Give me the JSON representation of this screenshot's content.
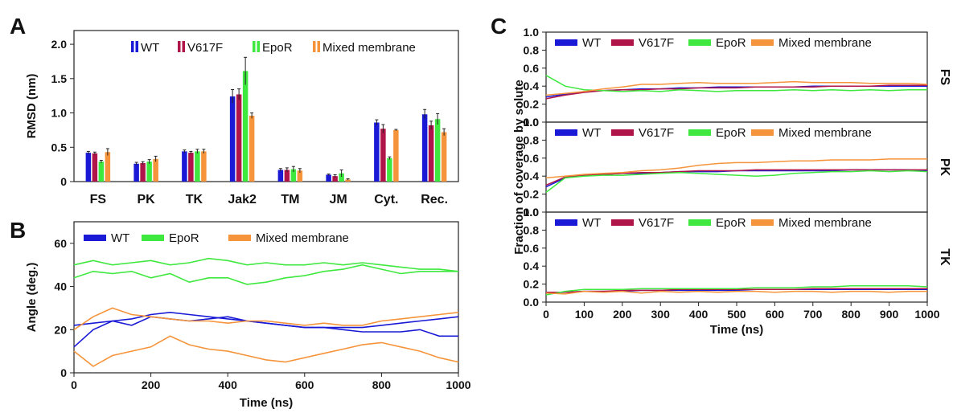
{
  "colors": {
    "WT": "#1a1ad6",
    "V617F": "#b0154a",
    "EpoR": "#3ee83e",
    "Mixed membrane": "#f5943a"
  },
  "chart_data": [
    {
      "panel": "A",
      "type": "bar",
      "ylabel": "RMSD (nm)",
      "xlabel": "",
      "ylim": [
        0,
        2.2
      ],
      "yticks": [
        "0",
        "0.5",
        "1.0",
        "1.5",
        "2.0"
      ],
      "ytick_values": [
        0,
        0.5,
        1.0,
        1.5,
        2.0
      ],
      "legend": "top",
      "categories": [
        "FS",
        "PK",
        "TK",
        "Jak2",
        "TM",
        "JM",
        "Cyt.",
        "Rec."
      ],
      "series": [
        {
          "name": "WT",
          "values": [
            0.42,
            0.26,
            0.44,
            1.24,
            0.17,
            0.1,
            0.86,
            0.98
          ],
          "errors": [
            0.02,
            0.02,
            0.02,
            0.1,
            0.02,
            0.01,
            0.04,
            0.07
          ]
        },
        {
          "name": "V617F",
          "values": [
            0.41,
            0.27,
            0.42,
            1.27,
            0.17,
            0.08,
            0.77,
            0.82
          ],
          "errors": [
            0.02,
            0.02,
            0.02,
            0.08,
            0.03,
            0.02,
            0.06,
            0.06
          ]
        },
        {
          "name": "EpoR",
          "values": [
            0.29,
            0.29,
            0.44,
            1.61,
            0.18,
            0.12,
            0.34,
            0.91
          ],
          "errors": [
            0.02,
            0.03,
            0.03,
            0.2,
            0.04,
            0.05,
            0.02,
            0.08
          ]
        },
        {
          "name": "Mixed membrane",
          "values": [
            0.43,
            0.33,
            0.44,
            0.96,
            0.16,
            0.03,
            0.75,
            0.72
          ],
          "errors": [
            0.05,
            0.04,
            0.03,
            0.04,
            0.03,
            0.01,
            0.01,
            0.05
          ]
        }
      ]
    },
    {
      "panel": "B",
      "type": "line",
      "xlabel": "Time (ns)",
      "ylabel": "Angle (deg.)",
      "xlim": [
        0,
        1000
      ],
      "ylim": [
        0,
        70
      ],
      "xticks": [
        "0",
        "200",
        "400",
        "600",
        "800",
        "1000"
      ],
      "xtick_values": [
        0,
        200,
        400,
        600,
        800,
        1000
      ],
      "yticks": [
        "0",
        "20",
        "40",
        "60"
      ],
      "ytick_values": [
        0,
        20,
        40,
        60
      ],
      "legend": "top",
      "legend_entries": [
        "WT",
        "EpoR",
        "Mixed membrane"
      ],
      "x": [
        0,
        50,
        100,
        150,
        200,
        250,
        300,
        350,
        400,
        450,
        500,
        550,
        600,
        650,
        700,
        750,
        800,
        850,
        900,
        950,
        1000
      ],
      "series": [
        {
          "name": "WT",
          "values": [
            22,
            23,
            24,
            25,
            27,
            28,
            27,
            26,
            25,
            24,
            23,
            22,
            21,
            21,
            21,
            21,
            22,
            23,
            24,
            25,
            26
          ]
        },
        {
          "name": "WT",
          "values": [
            12,
            20,
            24,
            22,
            26,
            25,
            24,
            25,
            26,
            24,
            23,
            22,
            21,
            21,
            20,
            19,
            19,
            19,
            20,
            17,
            17
          ]
        },
        {
          "name": "EpoR",
          "values": [
            50,
            52,
            50,
            51,
            52,
            50,
            51,
            53,
            52,
            50,
            51,
            50,
            50,
            51,
            50,
            51,
            50,
            49,
            48,
            48,
            47
          ]
        },
        {
          "name": "EpoR",
          "values": [
            44,
            47,
            46,
            47,
            44,
            46,
            42,
            44,
            44,
            41,
            42,
            44,
            45,
            47,
            48,
            50,
            48,
            46,
            47,
            47,
            47
          ]
        },
        {
          "name": "Mixed membrane",
          "values": [
            20,
            26,
            30,
            27,
            26,
            25,
            24,
            24,
            23,
            24,
            24,
            23,
            22,
            23,
            22,
            22,
            24,
            25,
            26,
            27,
            28
          ]
        },
        {
          "name": "Mixed membrane",
          "values": [
            10,
            3,
            8,
            10,
            12,
            17,
            13,
            11,
            10,
            8,
            6,
            5,
            7,
            9,
            11,
            13,
            14,
            12,
            10,
            7,
            5
          ]
        }
      ]
    },
    {
      "panel": "C",
      "type": "line",
      "xlabel": "Time (ns)",
      "ylabel": "Fraction of coverage by solute",
      "xlim": [
        0,
        1000
      ],
      "ylim": [
        0,
        1.0
      ],
      "xticks": [
        "0",
        "100",
        "200",
        "300",
        "400",
        "500",
        "600",
        "700",
        "800",
        "900",
        "1000"
      ],
      "xtick_values": [
        0,
        100,
        200,
        300,
        400,
        500,
        600,
        700,
        800,
        900,
        1000
      ],
      "yticks": [
        "0.0",
        "0.2",
        "0.4",
        "0.6",
        "0.8",
        "1.0"
      ],
      "ytick_values": [
        0,
        0.2,
        0.4,
        0.6,
        0.8,
        1.0
      ],
      "legend": "top",
      "legend_entries": [
        "WT",
        "V617F",
        "EpoR",
        "Mixed membrane"
      ],
      "x": [
        0,
        50,
        100,
        150,
        200,
        250,
        300,
        350,
        400,
        450,
        500,
        550,
        600,
        650,
        700,
        750,
        800,
        850,
        900,
        950,
        1000
      ],
      "subplots": [
        {
          "label": "FS",
          "series": [
            {
              "name": "WT",
              "values": [
                0.28,
                0.31,
                0.34,
                0.35,
                0.36,
                0.37,
                0.37,
                0.38,
                0.38,
                0.39,
                0.39,
                0.39,
                0.39,
                0.39,
                0.4,
                0.4,
                0.4,
                0.4,
                0.4,
                0.4,
                0.4
              ]
            },
            {
              "name": "V617F",
              "values": [
                0.26,
                0.3,
                0.33,
                0.35,
                0.36,
                0.36,
                0.37,
                0.37,
                0.38,
                0.38,
                0.38,
                0.39,
                0.39,
                0.39,
                0.39,
                0.4,
                0.4,
                0.4,
                0.41,
                0.41,
                0.41
              ]
            },
            {
              "name": "EpoR",
              "values": [
                0.52,
                0.4,
                0.36,
                0.35,
                0.34,
                0.35,
                0.34,
                0.36,
                0.35,
                0.34,
                0.35,
                0.35,
                0.35,
                0.36,
                0.35,
                0.36,
                0.35,
                0.36,
                0.35,
                0.36,
                0.36
              ]
            },
            {
              "name": "Mixed membrane",
              "values": [
                0.3,
                0.32,
                0.34,
                0.37,
                0.39,
                0.42,
                0.42,
                0.43,
                0.44,
                0.43,
                0.43,
                0.43,
                0.44,
                0.45,
                0.44,
                0.44,
                0.44,
                0.43,
                0.43,
                0.43,
                0.42
              ]
            }
          ]
        },
        {
          "label": "PK",
          "series": [
            {
              "name": "WT",
              "values": [
                0.28,
                0.38,
                0.41,
                0.42,
                0.43,
                0.43,
                0.44,
                0.45,
                0.45,
                0.45,
                0.46,
                0.46,
                0.46,
                0.46,
                0.46,
                0.46,
                0.47,
                0.47,
                0.47,
                0.47,
                0.46
              ]
            },
            {
              "name": "V617F",
              "values": [
                0.3,
                0.39,
                0.41,
                0.42,
                0.43,
                0.44,
                0.44,
                0.45,
                0.46,
                0.46,
                0.46,
                0.47,
                0.47,
                0.47,
                0.47,
                0.47,
                0.47,
                0.47,
                0.47,
                0.47,
                0.47
              ]
            },
            {
              "name": "EpoR",
              "values": [
                0.22,
                0.38,
                0.4,
                0.41,
                0.41,
                0.42,
                0.43,
                0.44,
                0.43,
                0.42,
                0.41,
                0.4,
                0.41,
                0.43,
                0.44,
                0.45,
                0.45,
                0.46,
                0.45,
                0.46,
                0.45
              ]
            },
            {
              "name": "Mixed membrane",
              "values": [
                0.38,
                0.4,
                0.42,
                0.43,
                0.44,
                0.46,
                0.47,
                0.49,
                0.52,
                0.54,
                0.55,
                0.55,
                0.56,
                0.57,
                0.57,
                0.58,
                0.58,
                0.58,
                0.59,
                0.59,
                0.59
              ]
            }
          ]
        },
        {
          "label": "TK",
          "series": [
            {
              "name": "WT",
              "values": [
                0.1,
                0.11,
                0.12,
                0.12,
                0.12,
                0.13,
                0.13,
                0.13,
                0.13,
                0.13,
                0.13,
                0.14,
                0.14,
                0.14,
                0.14,
                0.14,
                0.14,
                0.14,
                0.14,
                0.14,
                0.14
              ]
            },
            {
              "name": "V617F",
              "values": [
                0.11,
                0.11,
                0.12,
                0.12,
                0.13,
                0.13,
                0.13,
                0.14,
                0.14,
                0.14,
                0.14,
                0.14,
                0.14,
                0.14,
                0.15,
                0.15,
                0.15,
                0.15,
                0.15,
                0.15,
                0.15
              ]
            },
            {
              "name": "EpoR",
              "values": [
                0.08,
                0.12,
                0.14,
                0.14,
                0.14,
                0.15,
                0.15,
                0.15,
                0.15,
                0.15,
                0.15,
                0.16,
                0.16,
                0.16,
                0.17,
                0.17,
                0.18,
                0.18,
                0.18,
                0.18,
                0.17
              ]
            },
            {
              "name": "Mixed membrane",
              "values": [
                0.1,
                0.09,
                0.12,
                0.11,
                0.12,
                0.1,
                0.12,
                0.11,
                0.12,
                0.11,
                0.12,
                0.12,
                0.11,
                0.12,
                0.12,
                0.11,
                0.12,
                0.12,
                0.11,
                0.12,
                0.12
              ]
            }
          ]
        }
      ]
    }
  ]
}
